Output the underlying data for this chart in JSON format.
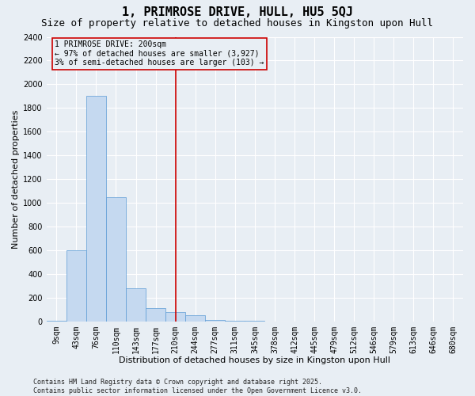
{
  "title": "1, PRIMROSE DRIVE, HULL, HU5 5QJ",
  "subtitle": "Size of property relative to detached houses in Kingston upon Hull",
  "xlabel": "Distribution of detached houses by size in Kingston upon Hull",
  "ylabel": "Number of detached properties",
  "categories": [
    "9sqm",
    "43sqm",
    "76sqm",
    "110sqm",
    "143sqm",
    "177sqm",
    "210sqm",
    "244sqm",
    "277sqm",
    "311sqm",
    "345sqm",
    "378sqm",
    "412sqm",
    "445sqm",
    "479sqm",
    "512sqm",
    "546sqm",
    "579sqm",
    "613sqm",
    "646sqm",
    "680sqm"
  ],
  "values": [
    5,
    600,
    1900,
    1050,
    280,
    110,
    80,
    50,
    10,
    5,
    2,
    1,
    0,
    0,
    0,
    0,
    0,
    0,
    0,
    0,
    0
  ],
  "bar_color": "#c5d9f0",
  "bar_edge_color": "#5b9bd5",
  "vline_x_idx": 6,
  "vline_color": "#cc0000",
  "annotation_text": "1 PRIMROSE DRIVE: 200sqm\n← 97% of detached houses are smaller (3,927)\n3% of semi-detached houses are larger (103) →",
  "annotation_box_color": "#cc0000",
  "ylim": [
    0,
    2400
  ],
  "yticks": [
    0,
    200,
    400,
    600,
    800,
    1000,
    1200,
    1400,
    1600,
    1800,
    2000,
    2200,
    2400
  ],
  "footer": "Contains HM Land Registry data © Crown copyright and database right 2025.\nContains public sector information licensed under the Open Government Licence v3.0.",
  "bg_color": "#e8eef4",
  "grid_color": "#ffffff",
  "title_fontsize": 11,
  "subtitle_fontsize": 9,
  "axis_label_fontsize": 8,
  "tick_fontsize": 7,
  "annotation_fontsize": 7,
  "footer_fontsize": 6
}
